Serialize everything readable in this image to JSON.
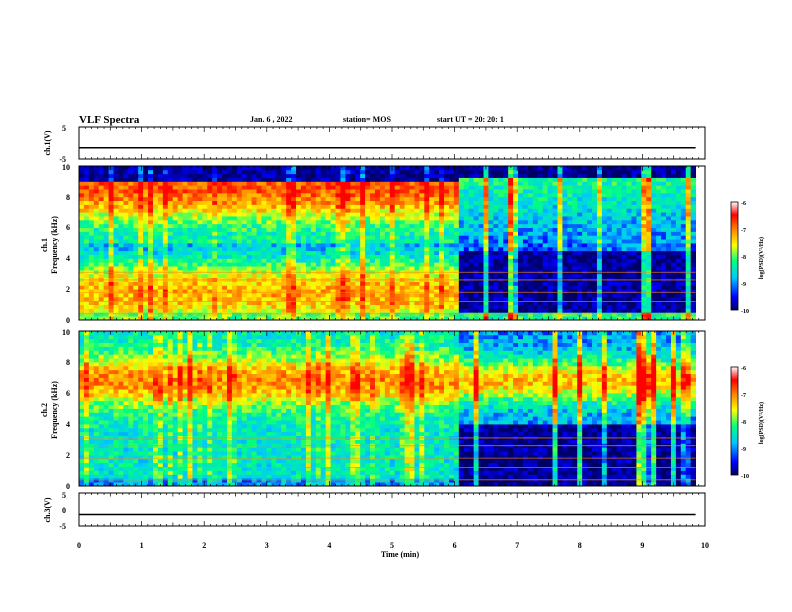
{
  "header": {
    "title": "VLF Spectra",
    "date": "Jan. 6 , 2022",
    "station": "station= MOS",
    "start_time": "start UT = 20: 20: 1"
  },
  "chart_data": [
    {
      "type": "line",
      "panel": "ch1-waveform",
      "ylabel": "ch.1(V)",
      "ylim": [
        -5,
        5
      ],
      "yticks": [
        "5",
        "-5"
      ],
      "trace_level": -1.5
    },
    {
      "type": "heatmap",
      "panel": "ch1-spectrogram",
      "ylabel": "ch.1 Frequency (kHz)",
      "ylabel_line1": "ch.1",
      "ylabel_line2": "Frequency (kHz)",
      "ylim": [
        0,
        10
      ],
      "yticks": [
        "0",
        "2",
        "4",
        "6",
        "8",
        "10"
      ],
      "xlim": [
        0,
        10
      ],
      "segments": [
        {
          "t_start": 0,
          "t_end": 6.1,
          "activity": "broadband noise 0-9 kHz"
        },
        {
          "t_start": 6.1,
          "t_end": 9.85,
          "activity": "low background below 5 kHz, bursts near 6-10 kHz"
        }
      ]
    },
    {
      "type": "heatmap",
      "panel": "ch2-spectrogram",
      "ylabel": "ch.2 Frequency (kHz)",
      "ylabel_line1": "ch.2",
      "ylabel_line2": "Frequency (kHz)",
      "ylim": [
        0,
        10
      ],
      "yticks": [
        "0",
        "2",
        "4",
        "6",
        "8",
        "10"
      ],
      "xlim": [
        0,
        10
      ],
      "segments": [
        {
          "t_start": 0,
          "t_end": 6.1,
          "activity": "broadband noise 0-10 kHz"
        },
        {
          "t_start": 6.1,
          "t_end": 9.85,
          "activity": "low background below 4 kHz, bursts near 5-9 kHz"
        }
      ]
    },
    {
      "type": "line",
      "panel": "ch3-waveform",
      "ylabel": "ch.3(V)",
      "ylim": [
        -5,
        5
      ],
      "yticks": [
        "5",
        "0",
        "-5"
      ],
      "trace_level": -1.5,
      "xlabel": "Time (min)",
      "xlim": [
        0,
        10
      ],
      "xticks": [
        "0",
        "1",
        "2",
        "3",
        "4",
        "5",
        "6",
        "7",
        "8",
        "9",
        "10"
      ]
    }
  ],
  "colorbar": {
    "label": "log(PSD)(V²/Hz)",
    "range": [
      -10,
      -6
    ],
    "ticks": [
      "-6",
      "-7",
      "-8",
      "-9",
      "-10"
    ],
    "colors": [
      "#000066",
      "#0000ff",
      "#00c8ff",
      "#00ff80",
      "#ffff00",
      "#ff8000",
      "#ff0000",
      "#ffffff"
    ]
  }
}
